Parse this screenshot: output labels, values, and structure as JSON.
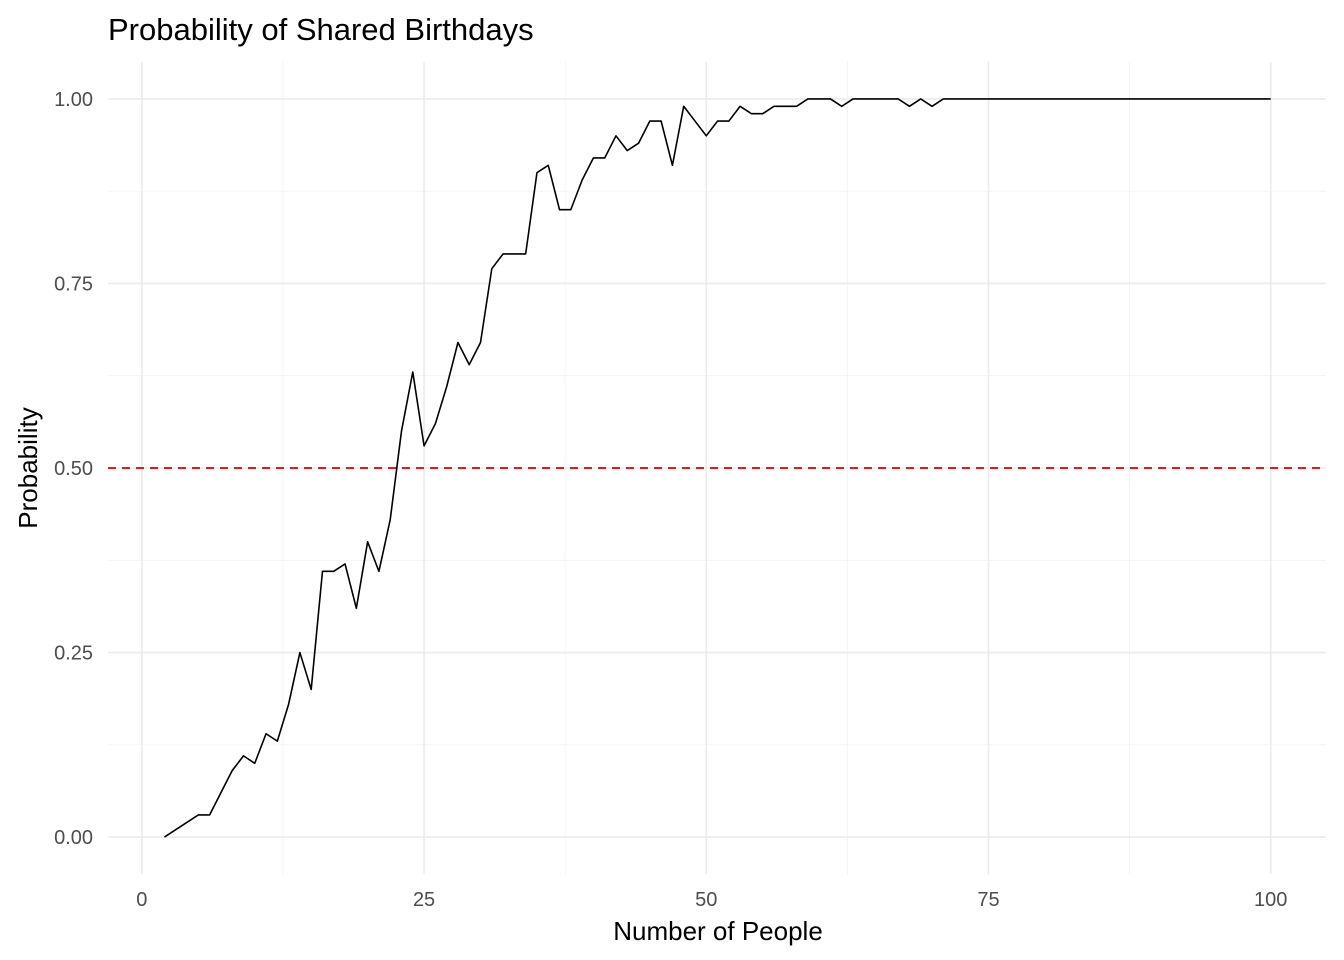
{
  "chart_data": {
    "type": "line",
    "title": "Probability of Shared Birthdays",
    "xlabel": "Number of People",
    "ylabel": "Probability",
    "xlim": [
      2,
      100
    ],
    "ylim": [
      0,
      1
    ],
    "x_ticks": [
      0,
      25,
      50,
      75,
      100
    ],
    "x_tick_labels": [
      "0",
      "25",
      "50",
      "75",
      "100"
    ],
    "y_ticks": [
      0,
      0.25,
      0.5,
      0.75,
      1
    ],
    "y_tick_labels": [
      "0.00",
      "0.25",
      "0.50",
      "0.75",
      "1.00"
    ],
    "grid": true,
    "legend": "none",
    "series": [
      {
        "color": "#000000",
        "x": [
          2,
          3,
          4,
          5,
          6,
          7,
          8,
          9,
          10,
          11,
          12,
          13,
          14,
          15,
          16,
          17,
          18,
          19,
          20,
          21,
          22,
          23,
          24,
          25,
          26,
          27,
          28,
          29,
          30,
          31,
          32,
          33,
          34,
          35,
          36,
          37,
          38,
          39,
          40,
          41,
          42,
          43,
          44,
          45,
          46,
          47,
          48,
          49,
          50,
          51,
          52,
          53,
          54,
          55,
          56,
          57,
          58,
          59,
          60,
          61,
          62,
          63,
          64,
          65,
          66,
          67,
          68,
          69,
          70,
          71,
          72,
          73,
          74,
          75,
          76,
          77,
          78,
          79,
          80,
          81,
          82,
          83,
          84,
          85,
          86,
          87,
          88,
          89,
          90,
          91,
          92,
          93,
          94,
          95,
          96,
          97,
          98,
          99,
          100
        ],
        "y": [
          0.0,
          0.01,
          0.02,
          0.03,
          0.03,
          0.06,
          0.09,
          0.11,
          0.1,
          0.14,
          0.13,
          0.18,
          0.25,
          0.2,
          0.36,
          0.36,
          0.37,
          0.31,
          0.4,
          0.36,
          0.43,
          0.55,
          0.63,
          0.53,
          0.56,
          0.61,
          0.67,
          0.64,
          0.67,
          0.77,
          0.79,
          0.79,
          0.79,
          0.9,
          0.91,
          0.85,
          0.85,
          0.89,
          0.92,
          0.92,
          0.95,
          0.93,
          0.94,
          0.97,
          0.97,
          0.91,
          0.99,
          0.97,
          0.95,
          0.97,
          0.97,
          0.99,
          0.98,
          0.98,
          0.99,
          0.99,
          0.99,
          1.0,
          1.0,
          1.0,
          0.99,
          1.0,
          1.0,
          1.0,
          1.0,
          1.0,
          0.99,
          1.0,
          0.99,
          1.0,
          1.0,
          1.0,
          1.0,
          1.0,
          1.0,
          1.0,
          1.0,
          1.0,
          1.0,
          1.0,
          1.0,
          1.0,
          1.0,
          1.0,
          1.0,
          1.0,
          1.0,
          1.0,
          1.0,
          1.0,
          1.0,
          1.0,
          1.0,
          1.0,
          1.0,
          1.0,
          1.0,
          1.0,
          1.0
        ]
      }
    ],
    "reference_line": {
      "orientation": "horizontal",
      "y": 0.5,
      "color": "#e41a1c",
      "style": "dashed"
    }
  }
}
